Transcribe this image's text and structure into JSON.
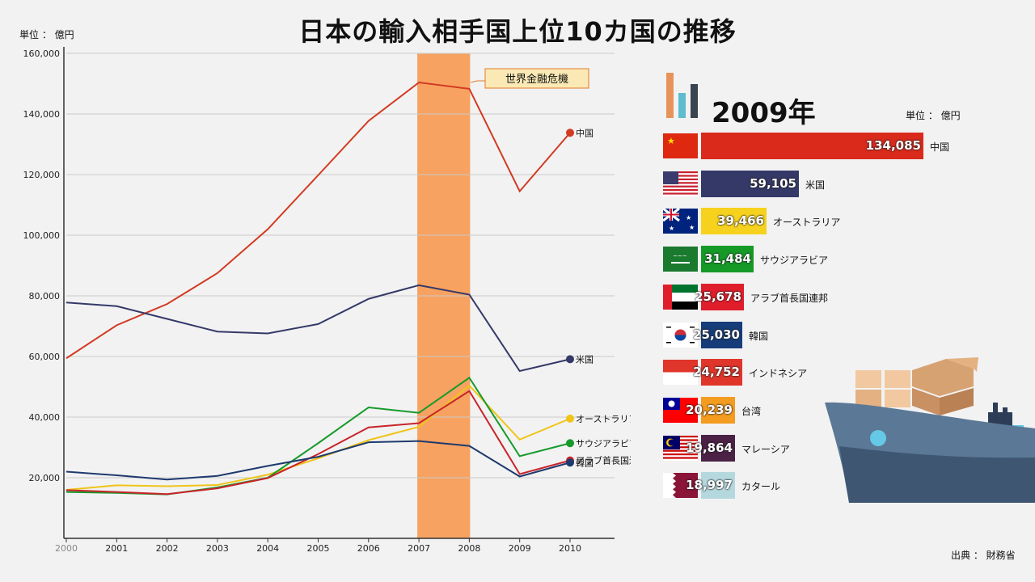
{
  "title": "日本の輸入相手国上位10カ国の推移",
  "unit_left": "単位 ： 億円",
  "unit_right": "単位 ： 億円",
  "source": "出典 ： 財務省",
  "year_label": "2009年",
  "crisis_label": "世界金融危機",
  "chart_data": {
    "type": "line",
    "x": [
      "2000",
      "2001",
      "2002",
      "2003",
      "2004",
      "2005",
      "2006",
      "2007",
      "2008",
      "2009",
      "2010"
    ],
    "ylim": [
      0,
      160000
    ],
    "yticks": [
      {
        "value": 20000,
        "label": "20,000"
      },
      {
        "value": 40000,
        "label": "40,000"
      },
      {
        "value": 60000,
        "label": "60,000"
      },
      {
        "value": 80000,
        "label": "80,000"
      },
      {
        "value": 100000,
        "label": "100,000"
      },
      {
        "value": 120000,
        "label": "120,000"
      },
      {
        "value": 140000,
        "label": "140,000"
      },
      {
        "value": 160000,
        "label": "160,000"
      }
    ],
    "grid": true,
    "highlight_range": [
      "2007",
      "2008"
    ],
    "series": [
      {
        "name": "中国",
        "color": "#d23a22",
        "values": [
          59400,
          70300,
          77300,
          87500,
          102000,
          119800,
          137700,
          150400,
          148300,
          114500,
          133800
        ]
      },
      {
        "name": "米国",
        "color": "#353968",
        "values": [
          77800,
          76600,
          72400,
          68200,
          67600,
          70700,
          79000,
          83500,
          80400,
          55200,
          59100
        ]
      },
      {
        "name": "オーストラリア",
        "color": "#f0c419",
        "values": [
          16000,
          17500,
          17200,
          17600,
          21000,
          26400,
          32400,
          36800,
          50400,
          32600,
          39500
        ]
      },
      {
        "name": "サウジアラビア",
        "color": "#179a2b",
        "values": [
          15300,
          15000,
          14500,
          16800,
          20000,
          31400,
          43200,
          41400,
          53000,
          27100,
          31400
        ]
      },
      {
        "name": "アラブ首長国連邦",
        "color": "#c9242a",
        "values": [
          15900,
          15300,
          14600,
          16500,
          19900,
          27800,
          36600,
          38000,
          48600,
          21200,
          25700
        ]
      },
      {
        "name": "韓国",
        "color": "#1e3a6e",
        "values": [
          22000,
          20800,
          19400,
          20600,
          23900,
          26900,
          31700,
          32100,
          30500,
          20400,
          25000
        ]
      }
    ]
  },
  "ranking": [
    {
      "country": "中国",
      "value": "134,085",
      "num": 134085,
      "color": "#d92a1c",
      "flag": "china"
    },
    {
      "country": "米国",
      "value": "59,105",
      "num": 59105,
      "color": "#353968",
      "flag": "usa"
    },
    {
      "country": "オーストラリア",
      "value": "39,466",
      "num": 39466,
      "color": "#f6d21e",
      "flag": "australia"
    },
    {
      "country": "サウジアラビア",
      "value": "31,484",
      "num": 31484,
      "color": "#159a28",
      "flag": "saudi"
    },
    {
      "country": "アラブ首長国連邦",
      "value": "25,678",
      "num": 25678,
      "color": "#e01e2b",
      "flag": "uae"
    },
    {
      "country": "韓国",
      "value": "25,030",
      "num": 25030,
      "color": "#163c7a",
      "flag": "korea"
    },
    {
      "country": "インドネシア",
      "value": "24,752",
      "num": 24752,
      "color": "#e0352b",
      "flag": "indonesia"
    },
    {
      "country": "台湾",
      "value": "20,239",
      "num": 20239,
      "color": "#f39c20",
      "flag": "taiwan"
    },
    {
      "country": "マレーシア",
      "value": "19,864",
      "num": 19864,
      "color": "#4b2146",
      "flag": "malaysia"
    },
    {
      "country": "カタール",
      "value": "18,997",
      "num": 18997,
      "color": "#b5d8de",
      "flag": "qatar"
    }
  ]
}
